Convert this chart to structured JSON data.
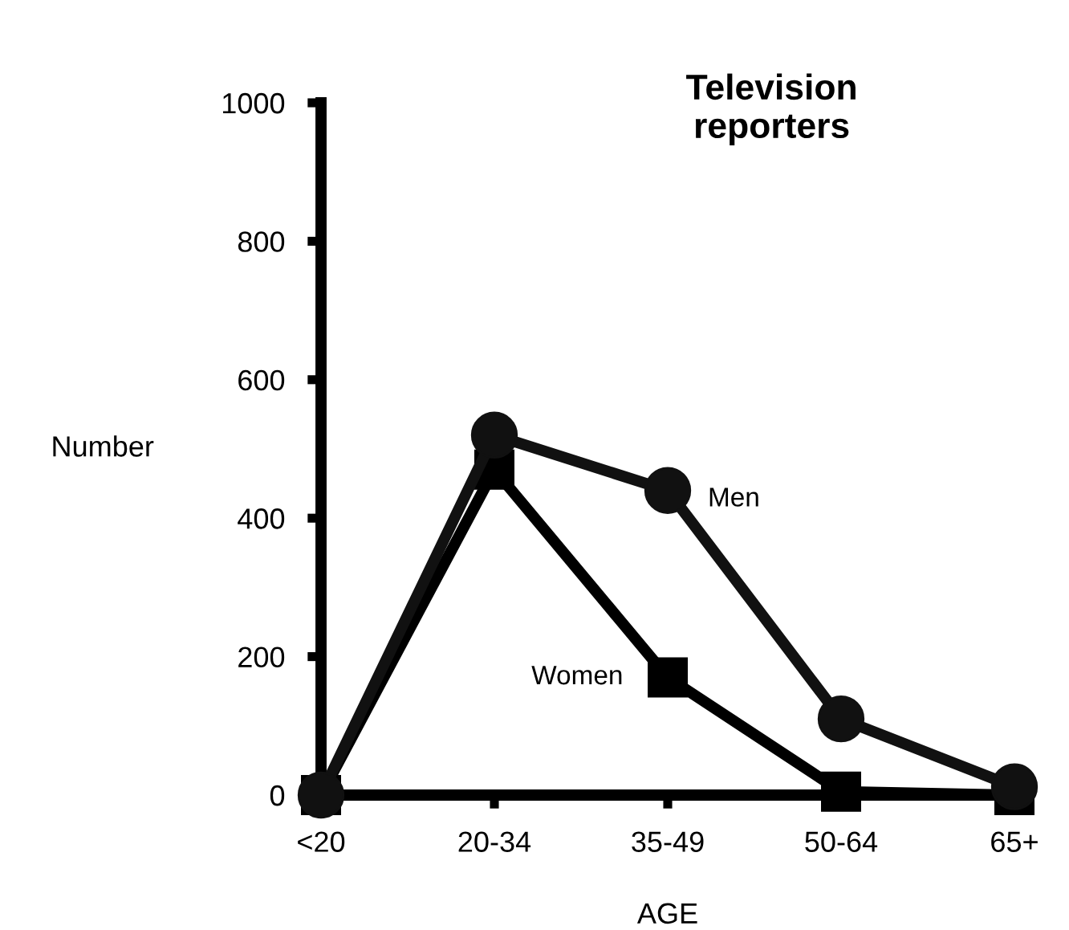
{
  "chart_data": {
    "type": "line",
    "title": "Television\nreporters",
    "xlabel": "AGE",
    "ylabel": "Number",
    "categories": [
      "<20",
      "20-34",
      "35-49",
      "50-64",
      "65+"
    ],
    "series": [
      {
        "name": "Men",
        "color": "#111111",
        "marker": "circle",
        "values": [
          0,
          520,
          440,
          110,
          12
        ]
      },
      {
        "name": "Women",
        "color": "#000000",
        "marker": "square",
        "values": [
          0,
          470,
          170,
          5,
          0
        ]
      }
    ],
    "ylim": [
      0,
      1000
    ],
    "yticks": [
      0,
      200,
      400,
      600,
      800,
      1000
    ],
    "grid": false,
    "legend": false,
    "line_style": "solid"
  }
}
